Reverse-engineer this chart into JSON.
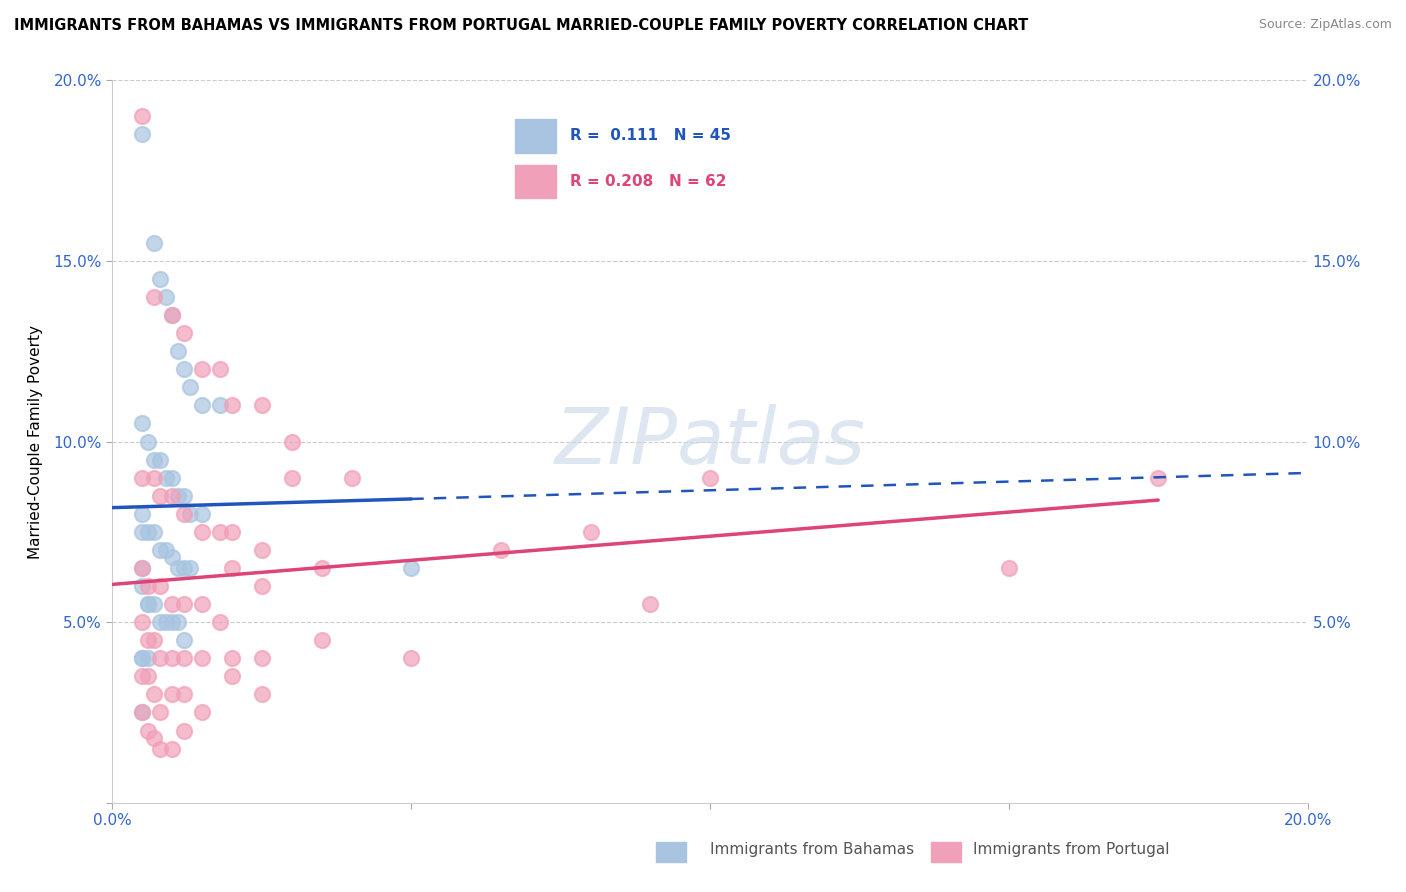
{
  "title": "IMMIGRANTS FROM BAHAMAS VS IMMIGRANTS FROM PORTUGAL MARRIED-COUPLE FAMILY POVERTY CORRELATION CHART",
  "source": "Source: ZipAtlas.com",
  "ylabel": "Married-Couple Family Poverty",
  "xlabel": "",
  "xlim": [
    0,
    0.2
  ],
  "ylim": [
    0,
    0.2
  ],
  "xticks": [
    0.0,
    0.05,
    0.1,
    0.15,
    0.2
  ],
  "yticks": [
    0.0,
    0.05,
    0.1,
    0.15,
    0.2
  ],
  "xticklabels": [
    "0.0%",
    "",
    "",
    "",
    "20.0%"
  ],
  "yticklabels": [
    "",
    "5.0%",
    "10.0%",
    "15.0%",
    "20.0%"
  ],
  "bahamas_color": "#a8c4e0",
  "portugal_color": "#f0a0b8",
  "trend_blue": "#2255bb",
  "trend_pink": "#dd4477",
  "watermark": "ZIPatlas",
  "bahamas_x": [
    0.005,
    0.007,
    0.008,
    0.009,
    0.01,
    0.011,
    0.012,
    0.013,
    0.015,
    0.018,
    0.005,
    0.006,
    0.007,
    0.008,
    0.009,
    0.01,
    0.011,
    0.012,
    0.013,
    0.015,
    0.005,
    0.005,
    0.006,
    0.007,
    0.008,
    0.009,
    0.01,
    0.011,
    0.012,
    0.013,
    0.005,
    0.005,
    0.006,
    0.006,
    0.007,
    0.008,
    0.009,
    0.01,
    0.011,
    0.012,
    0.005,
    0.005,
    0.006,
    0.05,
    0.005
  ],
  "bahamas_y": [
    0.185,
    0.155,
    0.145,
    0.14,
    0.135,
    0.125,
    0.12,
    0.115,
    0.11,
    0.11,
    0.105,
    0.1,
    0.095,
    0.095,
    0.09,
    0.09,
    0.085,
    0.085,
    0.08,
    0.08,
    0.08,
    0.075,
    0.075,
    0.075,
    0.07,
    0.07,
    0.068,
    0.065,
    0.065,
    0.065,
    0.065,
    0.06,
    0.055,
    0.055,
    0.055,
    0.05,
    0.05,
    0.05,
    0.05,
    0.045,
    0.04,
    0.04,
    0.04,
    0.065,
    0.025
  ],
  "portugal_x": [
    0.005,
    0.007,
    0.01,
    0.012,
    0.015,
    0.018,
    0.02,
    0.025,
    0.03,
    0.005,
    0.007,
    0.008,
    0.01,
    0.012,
    0.015,
    0.018,
    0.02,
    0.025,
    0.03,
    0.005,
    0.006,
    0.008,
    0.01,
    0.012,
    0.015,
    0.018,
    0.02,
    0.025,
    0.04,
    0.005,
    0.006,
    0.007,
    0.008,
    0.01,
    0.012,
    0.015,
    0.02,
    0.025,
    0.035,
    0.005,
    0.006,
    0.007,
    0.008,
    0.01,
    0.012,
    0.015,
    0.02,
    0.025,
    0.05,
    0.005,
    0.006,
    0.007,
    0.008,
    0.01,
    0.012,
    0.035,
    0.065,
    0.08,
    0.1,
    0.15,
    0.175,
    0.09
  ],
  "portugal_y": [
    0.19,
    0.14,
    0.135,
    0.13,
    0.12,
    0.12,
    0.11,
    0.11,
    0.1,
    0.09,
    0.09,
    0.085,
    0.085,
    0.08,
    0.075,
    0.075,
    0.075,
    0.07,
    0.09,
    0.065,
    0.06,
    0.06,
    0.055,
    0.055,
    0.055,
    0.05,
    0.065,
    0.06,
    0.09,
    0.05,
    0.045,
    0.045,
    0.04,
    0.04,
    0.04,
    0.04,
    0.04,
    0.04,
    0.065,
    0.035,
    0.035,
    0.03,
    0.025,
    0.03,
    0.03,
    0.025,
    0.035,
    0.03,
    0.04,
    0.025,
    0.02,
    0.018,
    0.015,
    0.015,
    0.02,
    0.045,
    0.07,
    0.075,
    0.09,
    0.065,
    0.09,
    0.055
  ]
}
